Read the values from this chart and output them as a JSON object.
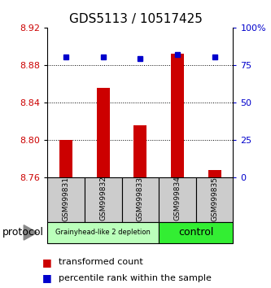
{
  "title": "GDS5113 / 10517425",
  "samples": [
    "GSM999831",
    "GSM999832",
    "GSM999833",
    "GSM999834",
    "GSM999835"
  ],
  "transformed_counts": [
    8.8,
    8.855,
    8.815,
    8.892,
    8.768
  ],
  "percentile_ranks": [
    80,
    80,
    79,
    82,
    80
  ],
  "ylim": [
    8.76,
    8.92
  ],
  "yticks": [
    8.76,
    8.8,
    8.84,
    8.88,
    8.92
  ],
  "ytick_labels": [
    "8.76",
    "8.80",
    "8.84",
    "8.88",
    "8.92"
  ],
  "y2lim": [
    0,
    100
  ],
  "y2ticks": [
    0,
    25,
    50,
    75,
    100
  ],
  "y2tick_labels": [
    "0",
    "25",
    "50",
    "75",
    "100%"
  ],
  "bar_bottom": 8.76,
  "bar_color": "#cc0000",
  "dot_color": "#0000cc",
  "groups": [
    {
      "label": "Grainyhead-like 2 depletion",
      "samples": [
        0,
        1,
        2
      ],
      "color": "#bbffbb"
    },
    {
      "label": "control",
      "samples": [
        3,
        4
      ],
      "color": "#33ee33"
    }
  ],
  "protocol_label": "protocol",
  "legend_entries": [
    {
      "color": "#cc0000",
      "label": "transformed count"
    },
    {
      "color": "#0000cc",
      "label": "percentile rank within the sample"
    }
  ],
  "tick_label_color_left": "#cc0000",
  "tick_label_color_right": "#0000cc",
  "bar_width": 0.35,
  "dot_size": 5,
  "title_fontsize": 11,
  "axis_fontsize": 8,
  "sample_fontsize": 6.5,
  "legend_fontsize": 8,
  "group_label_fontsize_small": 6,
  "group_label_fontsize_large": 9
}
